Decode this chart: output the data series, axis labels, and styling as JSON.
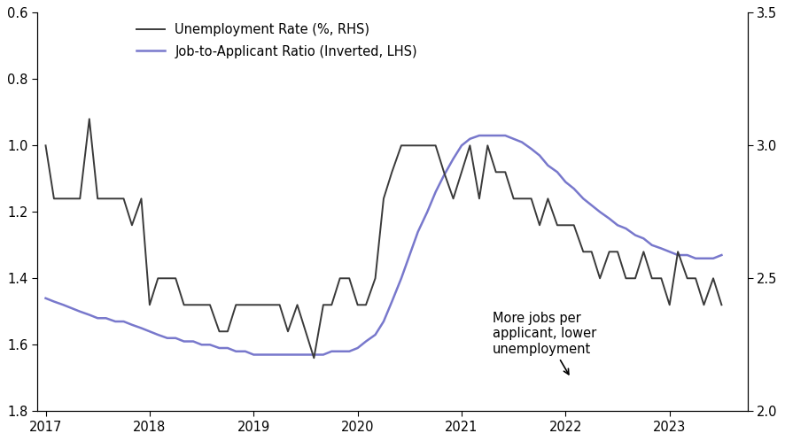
{
  "legend_items": [
    {
      "label": "Unemployment Rate (%, RHS)",
      "color": "#3a3a3a",
      "lw": 1.4
    },
    {
      "label": "Job-to-Applicant Ratio (Inverted, LHS)",
      "color": "#7878cc",
      "lw": 1.8
    }
  ],
  "annotation": "More jobs per\napplicant, lower\nunemployment",
  "lhs_ylim": [
    1.8,
    0.6
  ],
  "rhs_ylim": [
    2.0,
    3.5
  ],
  "lhs_yticks": [
    0.6,
    0.8,
    1.0,
    1.2,
    1.4,
    1.6,
    1.8
  ],
  "rhs_yticks": [
    2.0,
    2.5,
    3.0,
    3.5
  ],
  "unemployment_dates": [
    2017.0,
    2017.08,
    2017.17,
    2017.25,
    2017.33,
    2017.42,
    2017.5,
    2017.58,
    2017.67,
    2017.75,
    2017.83,
    2017.92,
    2018.0,
    2018.08,
    2018.17,
    2018.25,
    2018.33,
    2018.42,
    2018.5,
    2018.58,
    2018.67,
    2018.75,
    2018.83,
    2018.92,
    2019.0,
    2019.08,
    2019.17,
    2019.25,
    2019.33,
    2019.42,
    2019.5,
    2019.58,
    2019.67,
    2019.75,
    2019.83,
    2019.92,
    2020.0,
    2020.08,
    2020.17,
    2020.25,
    2020.33,
    2020.42,
    2020.5,
    2020.58,
    2020.67,
    2020.75,
    2020.83,
    2020.92,
    2021.0,
    2021.08,
    2021.17,
    2021.25,
    2021.33,
    2021.42,
    2021.5,
    2021.58,
    2021.67,
    2021.75,
    2021.83,
    2021.92,
    2022.0,
    2022.08,
    2022.17,
    2022.25,
    2022.33,
    2022.42,
    2022.5,
    2022.58,
    2022.67,
    2022.75,
    2022.83,
    2022.92,
    2023.0,
    2023.08,
    2023.17,
    2023.25,
    2023.33,
    2023.42,
    2023.5
  ],
  "unemployment_values": [
    3.0,
    2.8,
    2.8,
    2.8,
    2.8,
    3.1,
    2.8,
    2.8,
    2.8,
    2.8,
    2.7,
    2.8,
    2.4,
    2.5,
    2.5,
    2.5,
    2.4,
    2.4,
    2.4,
    2.4,
    2.3,
    2.3,
    2.4,
    2.4,
    2.4,
    2.4,
    2.4,
    2.4,
    2.3,
    2.4,
    2.3,
    2.2,
    2.4,
    2.4,
    2.5,
    2.5,
    2.4,
    2.4,
    2.5,
    2.8,
    2.9,
    3.0,
    3.0,
    3.0,
    3.0,
    3.0,
    2.9,
    2.8,
    2.9,
    3.0,
    2.8,
    3.0,
    2.9,
    2.9,
    2.8,
    2.8,
    2.8,
    2.7,
    2.8,
    2.7,
    2.7,
    2.7,
    2.6,
    2.6,
    2.5,
    2.6,
    2.6,
    2.5,
    2.5,
    2.6,
    2.5,
    2.5,
    2.4,
    2.6,
    2.5,
    2.5,
    2.4,
    2.5,
    2.4
  ],
  "job_ratio_dates": [
    2017.0,
    2017.08,
    2017.17,
    2017.25,
    2017.33,
    2017.42,
    2017.5,
    2017.58,
    2017.67,
    2017.75,
    2017.83,
    2017.92,
    2018.0,
    2018.08,
    2018.17,
    2018.25,
    2018.33,
    2018.42,
    2018.5,
    2018.58,
    2018.67,
    2018.75,
    2018.83,
    2018.92,
    2019.0,
    2019.08,
    2019.17,
    2019.25,
    2019.33,
    2019.42,
    2019.5,
    2019.58,
    2019.67,
    2019.75,
    2019.83,
    2019.92,
    2020.0,
    2020.08,
    2020.17,
    2020.25,
    2020.33,
    2020.42,
    2020.5,
    2020.58,
    2020.67,
    2020.75,
    2020.83,
    2020.92,
    2021.0,
    2021.08,
    2021.17,
    2021.25,
    2021.33,
    2021.42,
    2021.5,
    2021.58,
    2021.67,
    2021.75,
    2021.83,
    2021.92,
    2022.0,
    2022.08,
    2022.17,
    2022.25,
    2022.33,
    2022.42,
    2022.5,
    2022.58,
    2022.67,
    2022.75,
    2022.83,
    2022.92,
    2023.0,
    2023.08,
    2023.17,
    2023.25,
    2023.33,
    2023.42,
    2023.5
  ],
  "job_ratio_values": [
    1.46,
    1.47,
    1.48,
    1.49,
    1.5,
    1.51,
    1.52,
    1.52,
    1.53,
    1.53,
    1.54,
    1.55,
    1.56,
    1.57,
    1.58,
    1.58,
    1.59,
    1.59,
    1.6,
    1.6,
    1.61,
    1.61,
    1.62,
    1.62,
    1.63,
    1.63,
    1.63,
    1.63,
    1.63,
    1.63,
    1.63,
    1.63,
    1.63,
    1.62,
    1.62,
    1.62,
    1.61,
    1.59,
    1.57,
    1.53,
    1.47,
    1.4,
    1.33,
    1.26,
    1.2,
    1.14,
    1.09,
    1.04,
    1.0,
    0.98,
    0.97,
    0.97,
    0.97,
    0.97,
    0.98,
    0.99,
    1.01,
    1.03,
    1.06,
    1.08,
    1.11,
    1.13,
    1.16,
    1.18,
    1.2,
    1.22,
    1.24,
    1.25,
    1.27,
    1.28,
    1.3,
    1.31,
    1.32,
    1.33,
    1.33,
    1.34,
    1.34,
    1.34,
    1.33
  ],
  "unemp_color": "#3a3a3a",
  "job_color": "#7878cc",
  "bg_color": "#ffffff",
  "xticks": [
    2017,
    2018,
    2019,
    2020,
    2021,
    2022,
    2023
  ],
  "xlim": [
    2016.92,
    2023.75
  ]
}
